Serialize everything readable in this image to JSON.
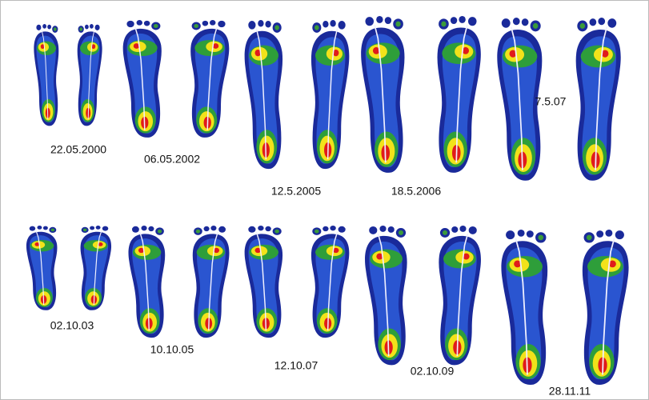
{
  "scans": [
    {
      "date": "22.05.2000"
    },
    {
      "date": "06.05.2002"
    },
    {
      "date": "12.5.2005"
    },
    {
      "date": "18.5.2006"
    },
    {
      "date": "7.5.07"
    },
    {
      "date": "02.10.03"
    },
    {
      "date": "10.10.05"
    },
    {
      "date": "12.10.07"
    },
    {
      "date": "02.10.09"
    },
    {
      "date": "28.11.11"
    }
  ]
}
